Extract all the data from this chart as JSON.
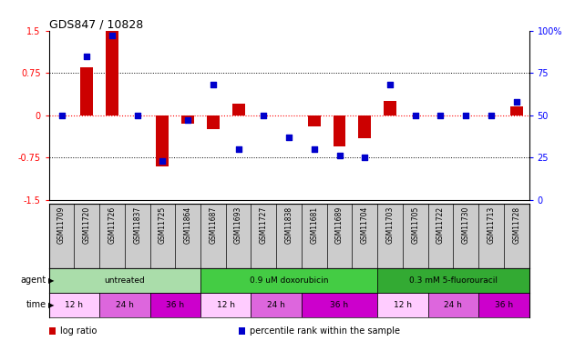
{
  "title": "GDS847 / 10828",
  "samples": [
    "GSM11709",
    "GSM11720",
    "GSM11726",
    "GSM11837",
    "GSM11725",
    "GSM11864",
    "GSM11687",
    "GSM11693",
    "GSM11727",
    "GSM11838",
    "GSM11681",
    "GSM11689",
    "GSM11704",
    "GSM11703",
    "GSM11705",
    "GSM11722",
    "GSM11730",
    "GSM11713",
    "GSM11728"
  ],
  "log_ratio": [
    0.0,
    0.85,
    1.5,
    0.0,
    -0.9,
    -0.15,
    -0.25,
    0.2,
    0.0,
    0.0,
    -0.2,
    -0.55,
    -0.4,
    0.25,
    0.0,
    0.0,
    0.0,
    0.0,
    0.15
  ],
  "percentile": [
    50,
    85,
    97,
    50,
    23,
    47,
    68,
    30,
    50,
    37,
    30,
    26,
    25,
    68,
    50,
    50,
    50,
    50,
    58
  ],
  "agent_groups": [
    {
      "label": "untreated",
      "start": 0,
      "end": 6,
      "color": "#aaddaa"
    },
    {
      "label": "0.9 uM doxorubicin",
      "start": 6,
      "end": 13,
      "color": "#44cc44"
    },
    {
      "label": "0.3 mM 5-fluorouracil",
      "start": 13,
      "end": 19,
      "color": "#33aa33"
    }
  ],
  "time_groups": [
    {
      "label": "12 h",
      "start": 0,
      "end": 2,
      "color": "#ffccff"
    },
    {
      "label": "24 h",
      "start": 2,
      "end": 4,
      "color": "#dd66dd"
    },
    {
      "label": "36 h",
      "start": 4,
      "end": 6,
      "color": "#cc00cc"
    },
    {
      "label": "12 h",
      "start": 6,
      "end": 8,
      "color": "#ffccff"
    },
    {
      "label": "24 h",
      "start": 8,
      "end": 10,
      "color": "#dd66dd"
    },
    {
      "label": "36 h",
      "start": 10,
      "end": 13,
      "color": "#cc00cc"
    },
    {
      "label": "12 h",
      "start": 13,
      "end": 15,
      "color": "#ffccff"
    },
    {
      "label": "24 h",
      "start": 15,
      "end": 17,
      "color": "#dd66dd"
    },
    {
      "label": "36 h",
      "start": 17,
      "end": 19,
      "color": "#cc00cc"
    }
  ],
  "bar_color": "#cc0000",
  "dot_color": "#0000cc",
  "ylim_left": [
    -1.5,
    1.5
  ],
  "ylim_right": [
    0,
    100
  ],
  "yticks_left": [
    -1.5,
    -0.75,
    0,
    0.75,
    1.5
  ],
  "yticks_right": [
    0,
    25,
    50,
    75,
    100
  ],
  "hlines": [
    0.75,
    0.0,
    -0.75
  ],
  "sample_bg": "#cccccc",
  "legend_items": [
    {
      "color": "#cc0000",
      "label": "log ratio"
    },
    {
      "color": "#0000cc",
      "label": "percentile rank within the sample"
    }
  ]
}
